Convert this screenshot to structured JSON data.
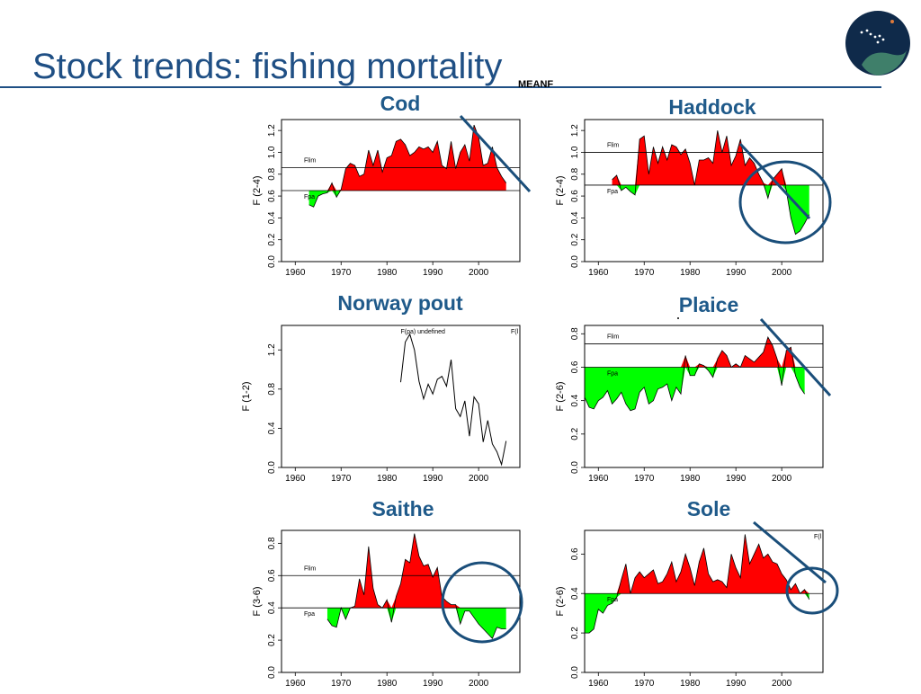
{
  "header": {
    "title": "Stock trends: fishing mortality",
    "tag": "MEANF"
  },
  "logo": {
    "icon": "organization-logo-icon",
    "colors": {
      "navy": "#0f2a4a",
      "teal": "#3f7f6a",
      "dot": "#e07a3a"
    }
  },
  "colors": {
    "above": "#ff0000",
    "below": "#00ff00",
    "annotation": "#1a4e7a",
    "title": "#1f4f84"
  },
  "chart_data": [
    {
      "id": "cod",
      "type": "area",
      "title": "Cod",
      "ylabel": "F (2-4)",
      "xlim": [
        1957,
        2009
      ],
      "ylim": [
        0,
        1.3
      ],
      "xticks": [
        1960,
        1970,
        1980,
        1990,
        2000
      ],
      "yticks": [
        "0.0",
        "0.2",
        "0.4",
        "0.6",
        "0.8",
        "1.0",
        "1.2"
      ],
      "baseline": 0.65,
      "flim": 0.86,
      "flim_label": "Flim",
      "fpa_label": "Fpa",
      "x": [
        1963,
        1964,
        1965,
        1966,
        1967,
        1968,
        1969,
        1970,
        1971,
        1972,
        1973,
        1974,
        1975,
        1976,
        1977,
        1978,
        1979,
        1980,
        1981,
        1982,
        1983,
        1984,
        1985,
        1986,
        1987,
        1988,
        1989,
        1990,
        1991,
        1992,
        1993,
        1994,
        1995,
        1996,
        1997,
        1998,
        1999,
        2000,
        2001,
        2002,
        2003,
        2004,
        2005,
        2006
      ],
      "y": [
        0.52,
        0.5,
        0.6,
        0.62,
        0.63,
        0.72,
        0.59,
        0.66,
        0.85,
        0.9,
        0.88,
        0.78,
        0.8,
        1.02,
        0.88,
        1.02,
        0.82,
        0.95,
        0.97,
        1.1,
        1.12,
        1.07,
        0.97,
        1.0,
        1.05,
        1.03,
        1.05,
        1.0,
        1.1,
        0.88,
        0.85,
        1.1,
        0.85,
        1.0,
        1.07,
        0.92,
        1.25,
        1.14,
        0.88,
        0.9,
        1.05,
        0.86,
        0.78,
        0.72
      ]
    },
    {
      "id": "haddock",
      "type": "area",
      "title": "Haddock",
      "ylabel": "F (2-4)",
      "xlim": [
        1957,
        2009
      ],
      "ylim": [
        0,
        1.3
      ],
      "xticks": [
        1960,
        1970,
        1980,
        1990,
        2000
      ],
      "yticks": [
        "0.0",
        "0.2",
        "0.4",
        "0.6",
        "0.8",
        "1.0",
        "1.2"
      ],
      "baseline": 0.7,
      "flim": 1.0,
      "flim_label": "Flim",
      "fpa_label": "Fpa",
      "x": [
        1963,
        1964,
        1965,
        1966,
        1967,
        1968,
        1969,
        1970,
        1971,
        1972,
        1973,
        1974,
        1975,
        1976,
        1977,
        1978,
        1979,
        1980,
        1981,
        1982,
        1983,
        1984,
        1985,
        1986,
        1987,
        1988,
        1989,
        1990,
        1991,
        1992,
        1993,
        1994,
        1995,
        1996,
        1997,
        1998,
        1999,
        2000,
        2001,
        2002,
        2003,
        2004,
        2005,
        2006
      ],
      "y": [
        0.75,
        0.79,
        0.65,
        0.68,
        0.64,
        0.61,
        1.12,
        1.15,
        0.8,
        1.05,
        0.9,
        1.05,
        0.93,
        1.07,
        1.05,
        0.98,
        1.03,
        0.9,
        0.7,
        0.93,
        0.93,
        0.95,
        0.9,
        1.2,
        1.0,
        1.15,
        0.88,
        0.97,
        1.12,
        0.88,
        0.95,
        0.9,
        0.8,
        0.72,
        0.58,
        0.75,
        0.8,
        0.85,
        0.65,
        0.4,
        0.25,
        0.28,
        0.35,
        0.43
      ]
    },
    {
      "id": "norway-pout",
      "type": "line",
      "title": "Norway pout",
      "ylabel": "F (1-2)",
      "xlim": [
        1957,
        2009
      ],
      "ylim": [
        0,
        1.45
      ],
      "xticks": [
        1960,
        1970,
        1980,
        1990,
        2000
      ],
      "yticks": [
        "0.0",
        "0.4",
        "0.8",
        "1.2"
      ],
      "annotation": "F(pa) undefined",
      "annotation2": "F(l",
      "x": [
        1983,
        1984,
        1985,
        1986,
        1987,
        1988,
        1989,
        1990,
        1991,
        1992,
        1993,
        1994,
        1995,
        1996,
        1997,
        1998,
        1999,
        2000,
        2001,
        2002,
        2003,
        2004,
        2005,
        2006
      ],
      "y": [
        0.87,
        1.28,
        1.36,
        1.2,
        0.88,
        0.7,
        0.85,
        0.75,
        0.9,
        0.93,
        0.83,
        1.1,
        0.6,
        0.52,
        0.68,
        0.32,
        0.72,
        0.65,
        0.26,
        0.48,
        0.24,
        0.16,
        0.03,
        0.27
      ]
    },
    {
      "id": "plaice",
      "type": "area",
      "title": "Plaice",
      "ylabel": "F (2-6)",
      "xlim": [
        1957,
        2009
      ],
      "ylim": [
        0,
        0.85
      ],
      "xticks": [
        1960,
        1970,
        1980,
        1990,
        2000
      ],
      "yticks": [
        "0.0",
        "0.2",
        "0.4",
        "0.6",
        "0.8"
      ],
      "baseline": 0.6,
      "flim": 0.74,
      "flim_label": "Flim",
      "fpa_label": "Fpa",
      "x": [
        1957,
        1958,
        1959,
        1960,
        1961,
        1962,
        1963,
        1964,
        1965,
        1966,
        1967,
        1968,
        1969,
        1970,
        1971,
        1972,
        1973,
        1974,
        1975,
        1976,
        1977,
        1978,
        1979,
        1980,
        1981,
        1982,
        1983,
        1984,
        1985,
        1986,
        1987,
        1988,
        1989,
        1990,
        1991,
        1992,
        1993,
        1994,
        1995,
        1996,
        1997,
        1998,
        1999,
        2000,
        2001,
        2002,
        2003,
        2004,
        2005
      ],
      "y": [
        0.42,
        0.36,
        0.35,
        0.4,
        0.42,
        0.46,
        0.38,
        0.41,
        0.45,
        0.38,
        0.34,
        0.35,
        0.45,
        0.48,
        0.38,
        0.4,
        0.47,
        0.48,
        0.5,
        0.4,
        0.48,
        0.44,
        0.67,
        0.55,
        0.55,
        0.62,
        0.61,
        0.58,
        0.54,
        0.65,
        0.7,
        0.67,
        0.6,
        0.62,
        0.6,
        0.67,
        0.65,
        0.63,
        0.66,
        0.69,
        0.78,
        0.73,
        0.65,
        0.49,
        0.7,
        0.72,
        0.55,
        0.48,
        0.44
      ]
    },
    {
      "id": "saithe",
      "type": "area",
      "title": "Saithe",
      "ylabel": "F (3-6)",
      "xlim": [
        1957,
        2009
      ],
      "ylim": [
        0,
        0.88
      ],
      "xticks": [
        1960,
        1970,
        1980,
        1990,
        2000
      ],
      "yticks": [
        "0.0",
        "0.2",
        "0.4",
        "0.6",
        "0.8"
      ],
      "baseline": 0.4,
      "flim": 0.6,
      "flim_label": "Flim",
      "fpa_label": "Fpa",
      "x": [
        1967,
        1968,
        1969,
        1970,
        1971,
        1972,
        1973,
        1974,
        1975,
        1976,
        1977,
        1978,
        1979,
        1980,
        1981,
        1982,
        1983,
        1984,
        1985,
        1986,
        1987,
        1988,
        1989,
        1990,
        1991,
        1992,
        1993,
        1994,
        1995,
        1996,
        1997,
        1998,
        1999,
        2000,
        2001,
        2002,
        2003,
        2004,
        2005,
        2006
      ],
      "y": [
        0.33,
        0.29,
        0.28,
        0.4,
        0.33,
        0.4,
        0.41,
        0.58,
        0.48,
        0.78,
        0.52,
        0.42,
        0.4,
        0.45,
        0.31,
        0.47,
        0.55,
        0.7,
        0.68,
        0.86,
        0.72,
        0.66,
        0.67,
        0.59,
        0.65,
        0.47,
        0.44,
        0.42,
        0.42,
        0.3,
        0.38,
        0.38,
        0.34,
        0.3,
        0.27,
        0.24,
        0.21,
        0.28,
        0.27,
        0.27
      ]
    },
    {
      "id": "sole",
      "type": "area",
      "title": "Sole",
      "ylabel": "F (2-6)",
      "xlim": [
        1957,
        2009
      ],
      "ylim": [
        0,
        0.72
      ],
      "xticks": [
        1960,
        1970,
        1980,
        1990,
        2000
      ],
      "yticks": [
        "0.0",
        "0.2",
        "0.4",
        "0.6"
      ],
      "baseline": 0.4,
      "fpa_label": "Fpa",
      "annotation": "F(l",
      "x": [
        1957,
        1958,
        1959,
        1960,
        1961,
        1962,
        1963,
        1964,
        1965,
        1966,
        1967,
        1968,
        1969,
        1970,
        1971,
        1972,
        1973,
        1974,
        1975,
        1976,
        1977,
        1978,
        1979,
        1980,
        1981,
        1982,
        1983,
        1984,
        1985,
        1986,
        1987,
        1988,
        1989,
        1990,
        1991,
        1992,
        1993,
        1994,
        1995,
        1996,
        1997,
        1998,
        1999,
        2000,
        2001,
        2002,
        2003,
        2004,
        2005,
        2006
      ],
      "y": [
        0.2,
        0.2,
        0.22,
        0.32,
        0.3,
        0.34,
        0.35,
        0.38,
        0.47,
        0.55,
        0.4,
        0.48,
        0.51,
        0.48,
        0.5,
        0.52,
        0.45,
        0.46,
        0.5,
        0.56,
        0.46,
        0.51,
        0.6,
        0.53,
        0.44,
        0.56,
        0.63,
        0.5,
        0.46,
        0.47,
        0.46,
        0.43,
        0.6,
        0.53,
        0.48,
        0.7,
        0.55,
        0.6,
        0.65,
        0.58,
        0.6,
        0.56,
        0.55,
        0.5,
        0.47,
        0.42,
        0.45,
        0.4,
        0.42,
        0.37
      ]
    }
  ]
}
